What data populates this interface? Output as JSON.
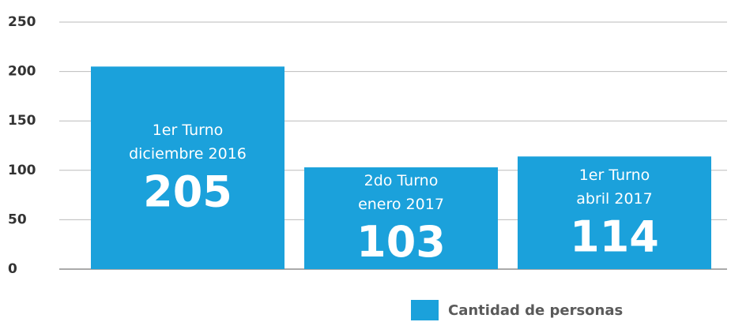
{
  "chart_data": {
    "type": "bar",
    "categories": [
      [
        "1er Turno",
        "diciembre 2016"
      ],
      [
        "2do Turno",
        "enero 2017"
      ],
      [
        "1er Turno",
        "abril 2017"
      ]
    ],
    "series": [
      {
        "name": "Cantidad de personas",
        "color": "#1ba1db",
        "values": [
          205,
          103,
          114
        ]
      }
    ],
    "ylim": [
      0,
      250
    ],
    "yticks": [
      0,
      50,
      100,
      150,
      200,
      250
    ],
    "grid": true,
    "legend": "bottom"
  }
}
